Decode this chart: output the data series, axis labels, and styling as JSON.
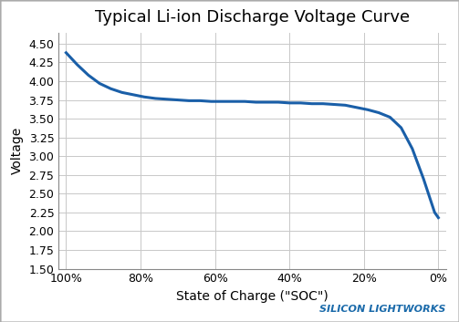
{
  "title": "Typical Li-ion Discharge Voltage Curve",
  "xlabel": "State of Charge (\"SOC\")",
  "ylabel": "Voltage",
  "watermark": "SILICON LIGHTWORKS",
  "watermark_color": "#1a6aaa",
  "line_color": "#1a5fa8",
  "line_width": 2.2,
  "background_color": "#ffffff",
  "grid_color": "#c8c8c8",
  "ylim": [
    1.5,
    4.65
  ],
  "yticks": [
    1.5,
    1.75,
    2.0,
    2.25,
    2.5,
    2.75,
    3.0,
    3.25,
    3.5,
    3.75,
    4.0,
    4.25,
    4.5
  ],
  "xticks_pct": [
    100,
    80,
    60,
    40,
    20,
    0
  ],
  "soc_x": [
    100,
    97,
    94,
    91,
    88,
    85,
    82,
    79,
    76,
    73,
    70,
    67,
    64,
    61,
    58,
    55,
    52,
    49,
    46,
    43,
    40,
    37,
    34,
    31,
    28,
    25,
    22,
    19,
    16,
    13,
    10,
    7,
    4,
    2,
    1,
    0
  ],
  "voltage_y": [
    4.38,
    4.22,
    4.08,
    3.97,
    3.9,
    3.85,
    3.82,
    3.79,
    3.77,
    3.76,
    3.75,
    3.74,
    3.74,
    3.73,
    3.73,
    3.73,
    3.73,
    3.72,
    3.72,
    3.72,
    3.71,
    3.71,
    3.7,
    3.7,
    3.69,
    3.68,
    3.65,
    3.62,
    3.58,
    3.52,
    3.38,
    3.1,
    2.7,
    2.4,
    2.25,
    2.18
  ],
  "fig_border_color": "#aaaaaa",
  "title_fontsize": 13,
  "tick_fontsize": 9,
  "label_fontsize": 10
}
